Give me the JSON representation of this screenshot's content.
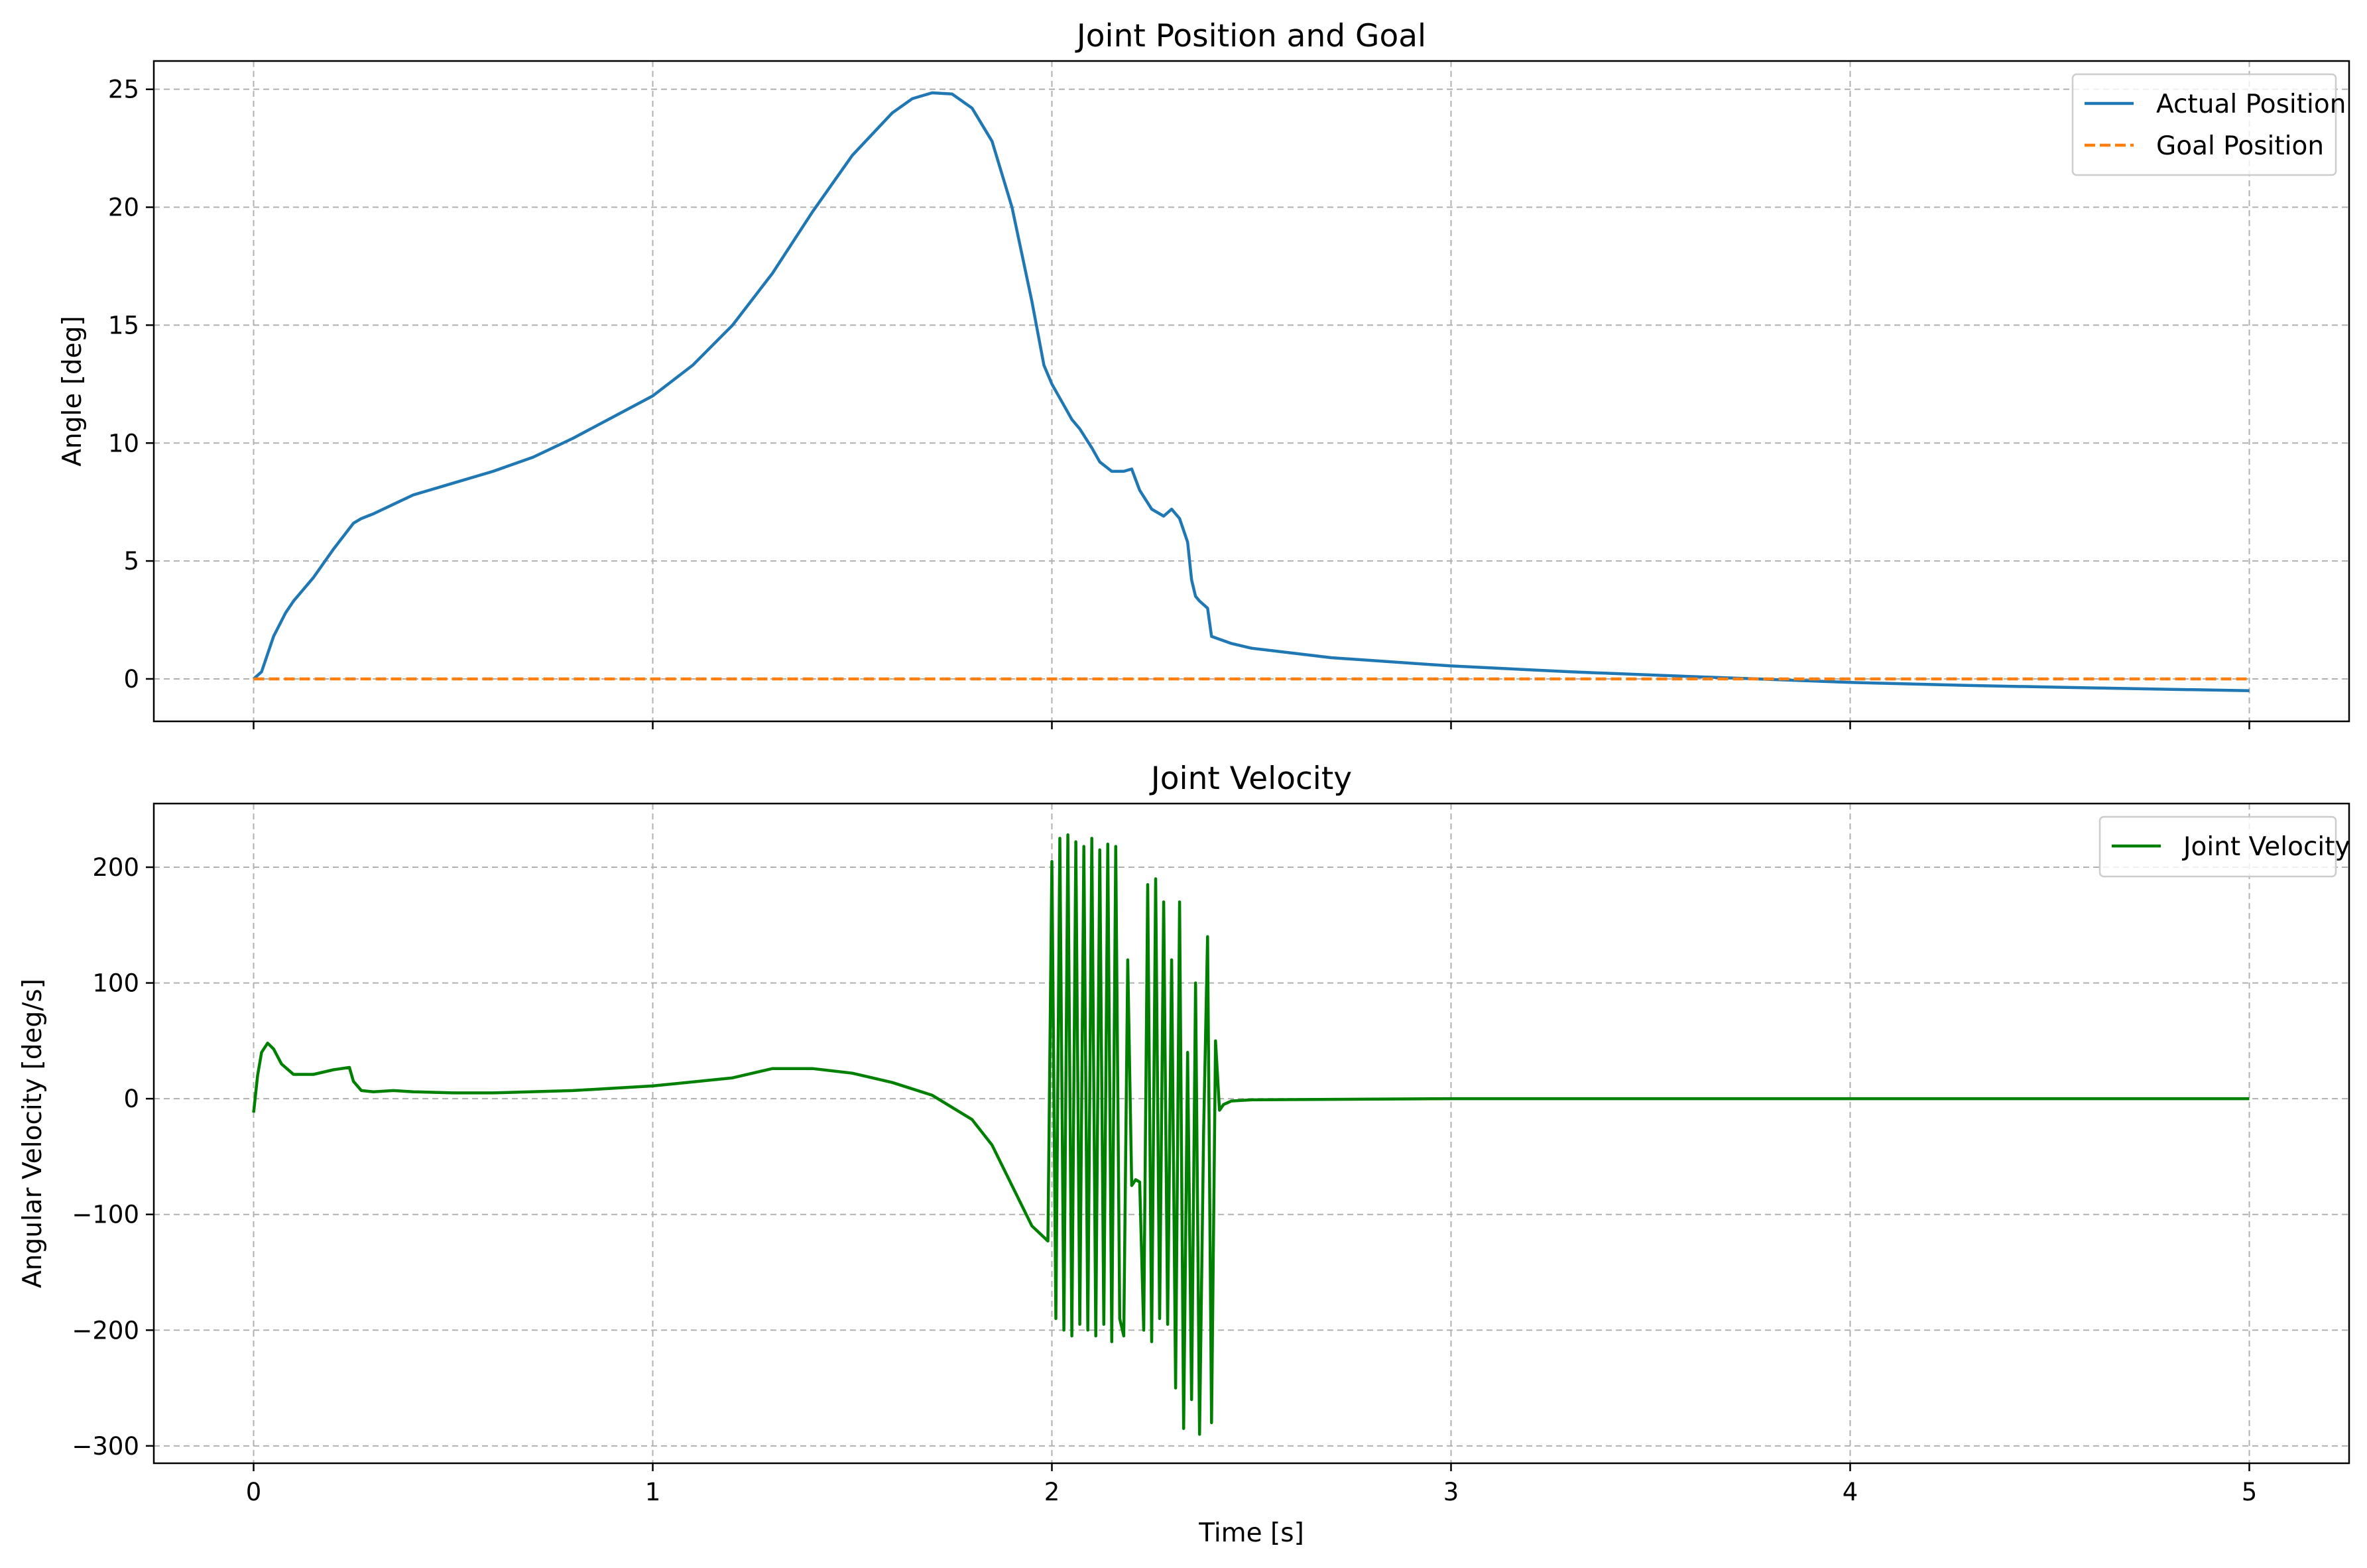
{
  "colors": {
    "actual": "#1f77b4",
    "goal": "#ff7f0e",
    "velocity": "#008000",
    "grid": "#b0b0b0",
    "axes": "#000000",
    "background": "#ffffff"
  },
  "chart_data": [
    {
      "type": "line",
      "title": "Joint Position and Goal",
      "xlabel": "",
      "ylabel": "Angle [deg]",
      "xlim": [
        -0.25,
        5.25
      ],
      "ylim": [
        -1.8,
        26.2
      ],
      "xticks": [
        0,
        1,
        2,
        3,
        4,
        5
      ],
      "xtick_labels_shown": false,
      "yticks": [
        0,
        5,
        10,
        15,
        20,
        25
      ],
      "ytick_labels": [
        "0",
        "5",
        "10",
        "15",
        "20",
        "25"
      ],
      "grid": true,
      "legend_position": "top-right",
      "series": [
        {
          "name": "Actual Position",
          "style": "solid",
          "color_key": "actual",
          "x": [
            0.0,
            0.02,
            0.05,
            0.08,
            0.1,
            0.15,
            0.2,
            0.25,
            0.27,
            0.3,
            0.35,
            0.4,
            0.5,
            0.6,
            0.7,
            0.8,
            0.9,
            1.0,
            1.1,
            1.2,
            1.3,
            1.4,
            1.5,
            1.6,
            1.65,
            1.7,
            1.75,
            1.8,
            1.85,
            1.9,
            1.95,
            1.98,
            2.0,
            2.03,
            2.05,
            2.07,
            2.1,
            2.12,
            2.15,
            2.18,
            2.2,
            2.22,
            2.25,
            2.28,
            2.3,
            2.32,
            2.34,
            2.35,
            2.36,
            2.37,
            2.39,
            2.4,
            2.45,
            2.5,
            2.7,
            3.0,
            3.3,
            3.6,
            3.8,
            4.0,
            4.3,
            4.6,
            5.0
          ],
          "y": [
            0.0,
            0.3,
            1.8,
            2.8,
            3.3,
            4.3,
            5.5,
            6.6,
            6.8,
            7.0,
            7.4,
            7.8,
            8.3,
            8.8,
            9.4,
            10.2,
            11.1,
            12.0,
            13.3,
            15.0,
            17.2,
            19.8,
            22.2,
            24.0,
            24.6,
            24.85,
            24.8,
            24.2,
            22.8,
            20.0,
            16.0,
            13.3,
            12.5,
            11.6,
            11.0,
            10.6,
            9.8,
            9.2,
            8.8,
            8.8,
            8.9,
            8.0,
            7.2,
            6.9,
            7.2,
            6.8,
            5.8,
            4.2,
            3.5,
            3.3,
            3.0,
            1.8,
            1.5,
            1.3,
            0.9,
            0.55,
            0.3,
            0.1,
            -0.02,
            -0.15,
            -0.28,
            -0.38,
            -0.5
          ]
        },
        {
          "name": "Goal Position",
          "style": "dashed",
          "color_key": "goal",
          "x": [
            0.0,
            5.0
          ],
          "y": [
            0.0,
            0.0
          ]
        }
      ]
    },
    {
      "type": "line",
      "title": "Joint Velocity",
      "xlabel": "Time [s]",
      "ylabel": "Angular Velocity [deg/s]",
      "xlim": [
        -0.25,
        5.25
      ],
      "ylim": [
        -315,
        255
      ],
      "xticks": [
        0,
        1,
        2,
        3,
        4,
        5
      ],
      "xtick_labels": [
        "0",
        "1",
        "2",
        "3",
        "4",
        "5"
      ],
      "yticks": [
        -300,
        -200,
        -100,
        0,
        100,
        200
      ],
      "ytick_labels": [
        "−300",
        "−200",
        "−100",
        "0",
        "100",
        "200"
      ],
      "grid": true,
      "legend_position": "top-right",
      "series": [
        {
          "name": "Joint Velocity",
          "style": "solid",
          "color_key": "velocity",
          "x": [
            0.0,
            0.01,
            0.02,
            0.035,
            0.05,
            0.07,
            0.1,
            0.15,
            0.2,
            0.24,
            0.25,
            0.27,
            0.3,
            0.35,
            0.4,
            0.5,
            0.6,
            0.8,
            1.0,
            1.2,
            1.3,
            1.4,
            1.5,
            1.6,
            1.7,
            1.8,
            1.85,
            1.9,
            1.95,
            1.99,
            2.0,
            2.01,
            2.02,
            2.03,
            2.04,
            2.05,
            2.06,
            2.07,
            2.08,
            2.09,
            2.1,
            2.11,
            2.12,
            2.13,
            2.14,
            2.15,
            2.16,
            2.17,
            2.18,
            2.19,
            2.2,
            2.21,
            2.22,
            2.23,
            2.24,
            2.25,
            2.26,
            2.27,
            2.28,
            2.29,
            2.3,
            2.31,
            2.32,
            2.33,
            2.34,
            2.35,
            2.36,
            2.37,
            2.38,
            2.39,
            2.4,
            2.41,
            2.42,
            2.43,
            2.45,
            2.5,
            3.0,
            4.0,
            5.0
          ],
          "y": [
            -12,
            20,
            40,
            48,
            43,
            30,
            21,
            21,
            25,
            27,
            15,
            7,
            6,
            7,
            6,
            5,
            5,
            7,
            11,
            18,
            26,
            26,
            22,
            14,
            3,
            -18,
            -40,
            -75,
            -110,
            -123,
            205,
            -190,
            225,
            -200,
            228,
            -205,
            222,
            -195,
            218,
            -200,
            225,
            -205,
            215,
            -195,
            220,
            -210,
            218,
            -190,
            -205,
            120,
            -75,
            -70,
            -72,
            -200,
            185,
            -210,
            190,
            -190,
            170,
            -195,
            120,
            -250,
            170,
            -285,
            40,
            -260,
            100,
            -290,
            -30,
            140,
            -280,
            50,
            -10,
            -5,
            -2,
            -1,
            0,
            0,
            0
          ]
        }
      ]
    }
  ]
}
